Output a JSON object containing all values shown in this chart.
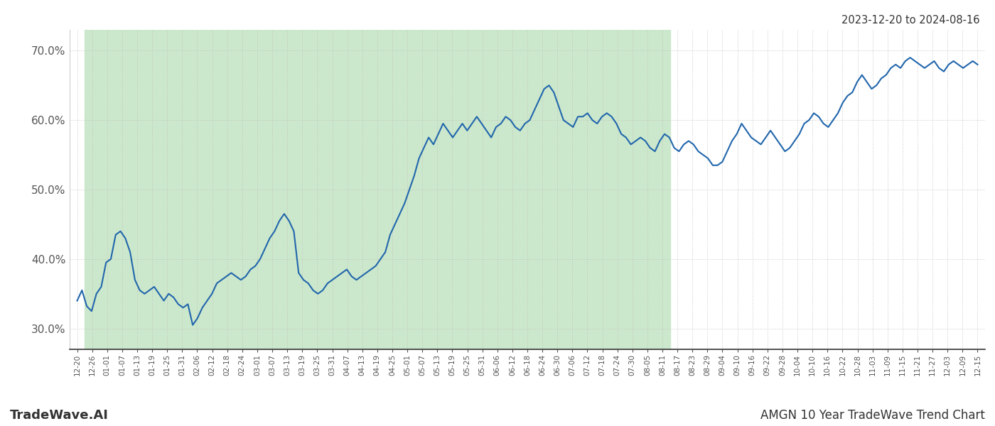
{
  "title_top_right": "2023-12-20 to 2024-08-16",
  "title_bottom_left": "TradeWave.AI",
  "title_bottom_right": "AMGN 10 Year TradeWave Trend Chart",
  "ylim": [
    27.0,
    73.0
  ],
  "yticks": [
    30.0,
    40.0,
    50.0,
    60.0,
    70.0
  ],
  "line_color": "#2166ac",
  "line_width": 1.5,
  "bg_color": "#ffffff",
  "shade_color": "#cce8cc",
  "grid_color": "#bbbbbb",
  "grid_style": ":",
  "grid_alpha": 0.8,
  "shade_start_label": "12-26",
  "shade_end_label": "08-11",
  "x_labels": [
    "12-20",
    "12-26",
    "01-01",
    "01-07",
    "01-13",
    "01-19",
    "01-25",
    "01-31",
    "02-06",
    "02-12",
    "02-18",
    "02-24",
    "03-01",
    "03-07",
    "03-13",
    "03-19",
    "03-25",
    "03-31",
    "04-07",
    "04-13",
    "04-19",
    "04-25",
    "05-01",
    "05-07",
    "05-13",
    "05-19",
    "05-25",
    "05-31",
    "06-06",
    "06-12",
    "06-18",
    "06-24",
    "06-30",
    "07-06",
    "07-12",
    "07-18",
    "07-24",
    "07-30",
    "08-05",
    "08-11",
    "08-17",
    "08-23",
    "08-29",
    "09-04",
    "09-10",
    "09-16",
    "09-22",
    "09-28",
    "10-04",
    "10-10",
    "10-16",
    "10-22",
    "10-28",
    "11-03",
    "11-09",
    "11-15",
    "11-21",
    "11-27",
    "12-03",
    "12-09",
    "12-15"
  ],
  "y_values": [
    34.0,
    35.5,
    33.2,
    32.5,
    35.0,
    36.0,
    39.5,
    40.0,
    43.5,
    44.0,
    43.0,
    41.0,
    37.0,
    35.5,
    35.0,
    35.5,
    36.0,
    35.0,
    34.0,
    35.0,
    34.5,
    33.5,
    33.0,
    33.5,
    30.5,
    31.5,
    33.0,
    34.0,
    35.0,
    36.5,
    37.0,
    37.5,
    38.0,
    37.5,
    37.0,
    37.5,
    38.5,
    39.0,
    40.0,
    41.5,
    43.0,
    44.0,
    45.5,
    46.5,
    45.5,
    44.0,
    38.0,
    37.0,
    36.5,
    35.5,
    35.0,
    35.5,
    36.5,
    37.0,
    37.5,
    38.0,
    38.5,
    37.5,
    37.0,
    37.5,
    38.0,
    38.5,
    39.0,
    40.0,
    41.0,
    43.5,
    45.0,
    46.5,
    48.0,
    50.0,
    52.0,
    54.5,
    56.0,
    57.5,
    56.5,
    58.0,
    59.5,
    58.5,
    57.5,
    58.5,
    59.5,
    58.5,
    59.5,
    60.5,
    59.5,
    58.5,
    57.5,
    59.0,
    59.5,
    60.5,
    60.0,
    59.0,
    58.5,
    59.5,
    60.0,
    61.5,
    63.0,
    64.5,
    65.0,
    64.0,
    62.0,
    60.0,
    59.5,
    59.0,
    60.5,
    60.5,
    61.0,
    60.0,
    59.5,
    60.5,
    61.0,
    60.5,
    59.5,
    58.0,
    57.5,
    56.5,
    57.0,
    57.5,
    57.0,
    56.0,
    55.5,
    57.0,
    58.0,
    57.5,
    56.0,
    55.5,
    56.5,
    57.0,
    56.5,
    55.5,
    55.0,
    54.5,
    53.5,
    53.5,
    54.0,
    55.5,
    57.0,
    58.0,
    59.5,
    58.5,
    57.5,
    57.0,
    56.5,
    57.5,
    58.5,
    57.5,
    56.5,
    55.5,
    56.0,
    57.0,
    58.0,
    59.5,
    60.0,
    61.0,
    60.5,
    59.5,
    59.0,
    60.0,
    61.0,
    62.5,
    63.5,
    64.0,
    65.5,
    66.5,
    65.5,
    64.5,
    65.0,
    66.0,
    66.5,
    67.5,
    68.0,
    67.5,
    68.5,
    69.0,
    68.5,
    68.0,
    67.5,
    68.0,
    68.5,
    67.5,
    67.0,
    68.0,
    68.5,
    68.0,
    67.5,
    68.0,
    68.5,
    68.0
  ]
}
